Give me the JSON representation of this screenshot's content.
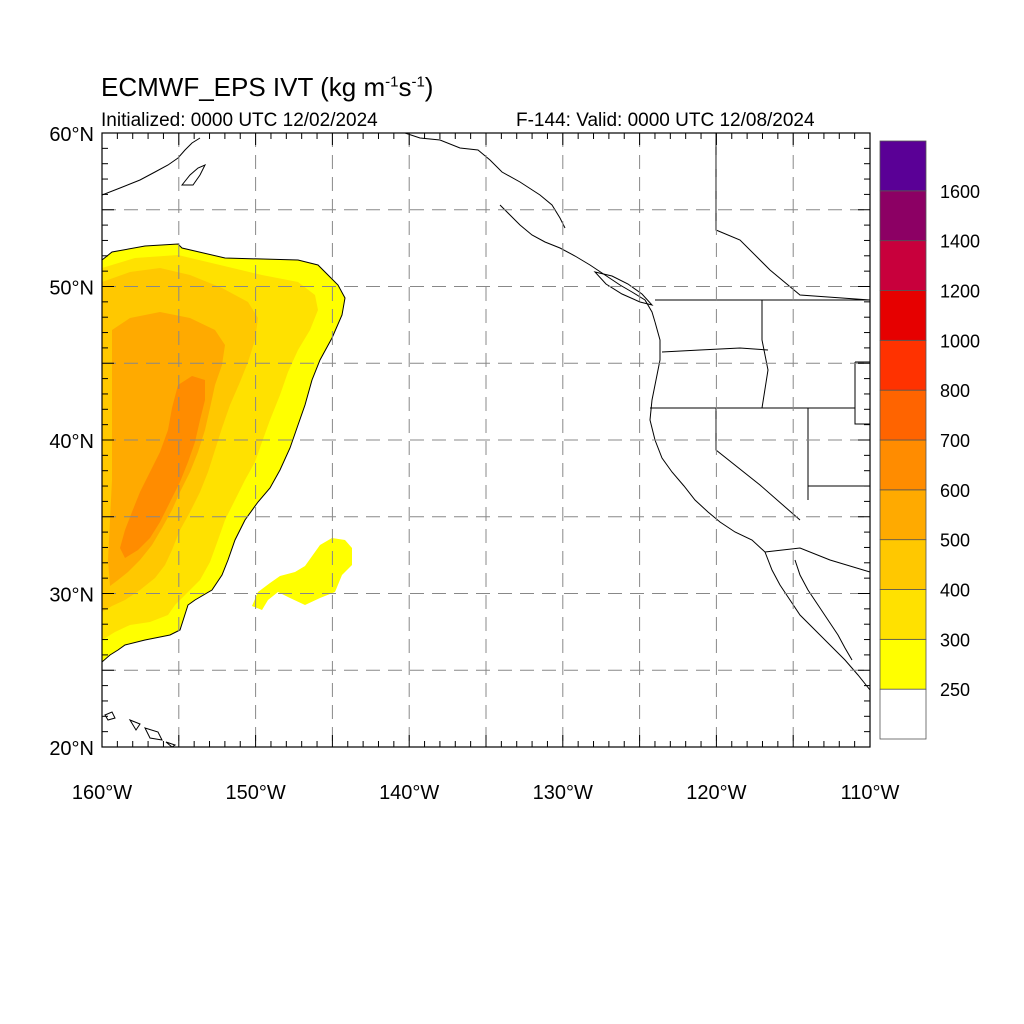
{
  "title": {
    "prefix": "ECMWF_EPS IVT (kg m",
    "exp1": "-1",
    "mid": "s",
    "exp2": "-1",
    "suffix": ")"
  },
  "initialized_label": "Initialized: 0000 UTC 12/02/2024",
  "valid_label": "F-144: Valid: 0000 UTC 12/08/2024",
  "map": {
    "lon_range": [
      -160,
      -110
    ],
    "lat_range": [
      20,
      60
    ],
    "x_ticks": [
      "160°W",
      "150°W",
      "140°W",
      "130°W",
      "120°W",
      "110°W"
    ],
    "y_ticks": [
      "20°N",
      "30°N",
      "40°N",
      "50°N",
      "60°N"
    ],
    "gridlines": "dashed",
    "grid_step_deg": 5
  },
  "colorbar": {
    "ticks": [
      "250",
      "300",
      "400",
      "500",
      "600",
      "700",
      "800",
      "1000",
      "1200",
      "1400",
      "1600"
    ],
    "colors": [
      "#ffffff",
      "#ffff00",
      "#ffe100",
      "#ffc800",
      "#ffaa00",
      "#ff8c00",
      "#ff6400",
      "#ff3200",
      "#e60000",
      "#c8003c",
      "#8c0064",
      "#5a0096"
    ]
  },
  "ivt_field": {
    "levels": [
      {
        "threshold": 250,
        "color": "#ffff00"
      },
      {
        "threshold": 300,
        "color": "#ffe100"
      },
      {
        "threshold": 400,
        "color": "#ffc800"
      },
      {
        "threshold": 500,
        "color": "#ffaa00"
      },
      {
        "threshold": 600,
        "color": "#ff8c00"
      }
    ]
  }
}
